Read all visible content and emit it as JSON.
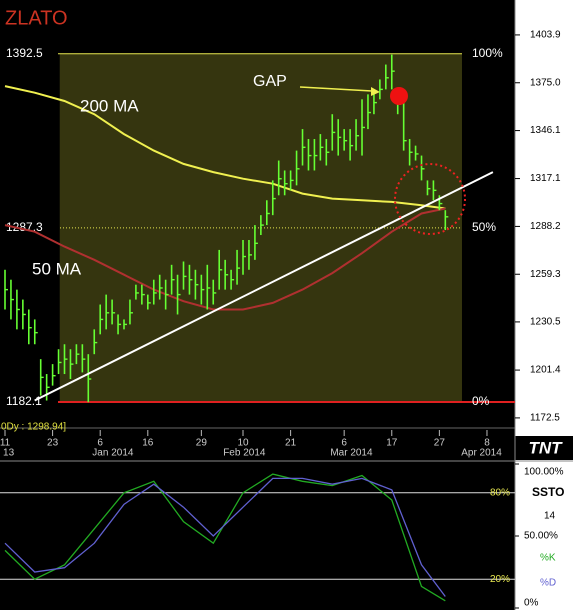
{
  "chart_data": {
    "type": "ohlc",
    "title": "ZLATO",
    "status": "0Dy : 1298.94]",
    "logo": "TNT",
    "annotation": "GAP",
    "x": [
      0,
      1,
      2,
      3,
      4,
      5,
      6,
      7,
      8,
      9,
      10,
      11,
      12,
      13,
      14,
      15,
      16,
      17,
      18,
      19,
      20,
      21,
      22,
      23,
      24,
      25,
      26,
      27,
      28,
      29,
      30,
      31,
      32,
      33,
      34,
      35,
      36,
      37,
      38,
      39,
      40,
      41,
      42,
      43,
      44,
      45,
      46,
      47,
      48,
      49,
      50,
      51,
      52,
      53,
      54,
      55,
      56,
      57,
      58,
      59,
      60,
      61,
      62,
      63,
      64,
      65,
      66,
      67,
      68,
      69,
      70,
      71,
      72,
      73,
      74
    ],
    "high": [
      1262,
      1256,
      1250,
      1244,
      1238,
      1232,
      1208,
      1199,
      1205,
      1214,
      1217,
      1214,
      1217,
      1217,
      1211,
      1226,
      1241,
      1247,
      1244,
      1235,
      1232,
      1244,
      1253,
      1253,
      1247,
      1256,
      1259,
      1256,
      1265,
      1259,
      1267,
      1265,
      1262,
      1259,
      1265,
      1256,
      1274,
      1268,
      1262,
      1274,
      1280,
      1280,
      1289,
      1295,
      1304,
      1316,
      1328,
      1322,
      1322,
      1334,
      1347,
      1341,
      1341,
      1344,
      1341,
      1356,
      1353,
      1347,
      1347,
      1353,
      1365,
      1368,
      1371,
      1377,
      1386,
      1392,
      1368,
      1365,
      1341,
      1337,
      1331,
      1316,
      1316,
      1307,
      1298
    ],
    "low": [
      1238,
      1232,
      1226,
      1226,
      1217,
      1217,
      1186,
      1183,
      1192,
      1199,
      1199,
      1196,
      1205,
      1200,
      1182,
      1211,
      1223,
      1226,
      1229,
      1223,
      1226,
      1229,
      1244,
      1241,
      1238,
      1241,
      1244,
      1238,
      1247,
      1235,
      1250,
      1247,
      1244,
      1241,
      1238,
      1241,
      1250,
      1250,
      1250,
      1253,
      1259,
      1262,
      1268,
      1283,
      1289,
      1295,
      1307,
      1307,
      1310,
      1313,
      1325,
      1322,
      1322,
      1328,
      1325,
      1334,
      1331,
      1334,
      1328,
      1334,
      1331,
      1347,
      1356,
      1365,
      1371,
      1371,
      1356,
      1334,
      1325,
      1328,
      1316,
      1307,
      1304,
      1298,
      1286
    ],
    "close": [
      1250,
      1244,
      1238,
      1235,
      1227,
      1224,
      1197,
      1191,
      1198,
      1206,
      1208,
      1205,
      1211,
      1208,
      1196,
      1218,
      1232,
      1236,
      1236,
      1229,
      1229,
      1236,
      1248,
      1247,
      1242,
      1248,
      1251,
      1247,
      1256,
      1247,
      1258,
      1256,
      1253,
      1250,
      1251,
      1248,
      1262,
      1259,
      1256,
      1263,
      1270,
      1271,
      1278,
      1289,
      1296,
      1305,
      1317,
      1314,
      1316,
      1323,
      1336,
      1331,
      1331,
      1336,
      1333,
      1345,
      1342,
      1340,
      1337,
      1343,
      1348,
      1357,
      1363,
      1371,
      1378,
      1382,
      1362,
      1340,
      1333,
      1332,
      1323,
      1311,
      1310,
      1302,
      1294
    ],
    "bar_color": "#66ff33",
    "series": [
      {
        "name": "200 MA",
        "color": "#f0f050",
        "x": [
          0,
          5,
          10,
          15,
          20,
          25,
          30,
          35,
          40,
          45,
          50,
          55,
          60,
          65,
          70,
          74
        ],
        "values": [
          1373,
          1369,
          1364,
          1356,
          1344,
          1334,
          1326,
          1321,
          1317,
          1314,
          1308,
          1305,
          1304,
          1303,
          1301,
          1299
        ]
      },
      {
        "name": "50 MA",
        "color": "#b03030",
        "x": [
          0,
          5,
          10,
          15,
          20,
          25,
          30,
          35,
          40,
          45,
          50,
          55,
          60,
          65,
          70,
          74
        ],
        "values": [
          1289,
          1285,
          1276,
          1268,
          1259,
          1250,
          1243,
          1238,
          1238,
          1242,
          1250,
          1260,
          1272,
          1285,
          1296,
          1299
        ]
      }
    ],
    "trendline": {
      "x": [
        5,
        82
      ],
      "values": [
        1183,
        1321
      ],
      "color": "#ffffff"
    },
    "levels": [
      {
        "value": 1392.5,
        "percent": "100%"
      },
      {
        "value": 1287.3,
        "percent": "50%"
      },
      {
        "value": 1182.1,
        "percent": "0%"
      }
    ],
    "level_x": [
      9.2,
      76.8
    ],
    "xlim": [
      -0.84,
      85.71
    ],
    "ylim": [
      1166.4,
      1425.0
    ],
    "yticks": [
      1172.5,
      1201.4,
      1230.5,
      1259.3,
      1288.2,
      1317.1,
      1346.1,
      {
        "value": 1375,
        "label": "1375.0"
      },
      1403.9
    ],
    "xticks": [
      {
        "value": 0,
        "label": "11"
      },
      {
        "value": 8,
        "label": "23"
      },
      {
        "value": 16,
        "label": "6"
      },
      {
        "value": 24,
        "label": "16"
      },
      {
        "value": 33,
        "label": "29"
      },
      {
        "value": 40,
        "label": "10"
      },
      {
        "value": 48,
        "label": "21"
      },
      {
        "value": 57,
        "label": "6"
      },
      {
        "value": 65,
        "label": "17"
      },
      {
        "value": 73,
        "label": "27"
      },
      {
        "value": 81,
        "label": "8"
      }
    ],
    "month_ticks": [
      {
        "value": -1,
        "label": "13"
      },
      {
        "value": 14,
        "label": "Jan 2014"
      },
      {
        "value": 36,
        "label": "Feb 2014"
      },
      {
        "value": 54,
        "label": "Mar 2014"
      },
      {
        "value": 76,
        "label": "Apr 2014"
      }
    ],
    "oscillator": {
      "name": "SSTO",
      "period": 14,
      "ylim": [
        -1.4,
        101.4
      ],
      "yticks": [
        {
          "value": 100,
          "label": "100.00%"
        },
        {
          "value": 50,
          "label": "50.00%"
        },
        {
          "value": 0,
          "label": "0%"
        }
      ],
      "levels": [
        {
          "value": 80,
          "label": "80%"
        },
        {
          "value": 20,
          "label": "20%"
        }
      ],
      "series": [
        {
          "name": "%K",
          "color": "#22aa22",
          "x": [
            0,
            5,
            10,
            15,
            20,
            25,
            30,
            35,
            40,
            45,
            50,
            55,
            60,
            65,
            70,
            74
          ],
          "values": [
            40,
            20,
            30,
            55,
            80,
            88,
            60,
            45,
            80,
            93,
            88,
            85,
            92,
            75,
            15,
            5
          ]
        },
        {
          "name": "%D",
          "color": "#6060d0",
          "x": [
            0,
            5,
            10,
            15,
            20,
            25,
            30,
            35,
            40,
            45,
            50,
            55,
            60,
            65,
            70,
            74
          ],
          "values": [
            45,
            25,
            28,
            45,
            72,
            86,
            70,
            50,
            70,
            90,
            90,
            86,
            90,
            82,
            30,
            8
          ]
        }
      ]
    }
  }
}
